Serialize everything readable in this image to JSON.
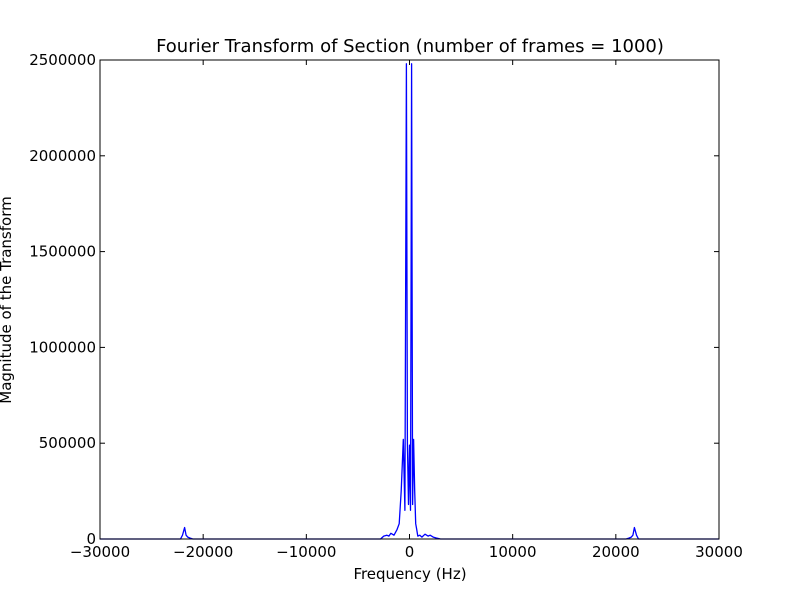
{
  "chart_data": {
    "type": "line",
    "title": "Fourier Transform of Section  (number of frames = 1000)",
    "xlabel": "Frequency (Hz)",
    "ylabel": "Magnitude of the Transform",
    "xlim": [
      -30000,
      30000
    ],
    "ylim": [
      0,
      2500000
    ],
    "xticks": [
      -30000,
      -20000,
      -10000,
      0,
      10000,
      20000,
      30000
    ],
    "xtick_labels": [
      "−30000",
      "−20000",
      "−10000",
      "0",
      "10000",
      "20000",
      "30000"
    ],
    "yticks": [
      0,
      500000,
      1000000,
      1500000,
      2000000,
      2500000
    ],
    "ytick_labels": [
      "0",
      "500000",
      "1000000",
      "1500000",
      "2000000",
      "2500000"
    ],
    "grid": false,
    "line_color": "#0000ff",
    "series": [
      {
        "x": [
          -30000,
          -22200,
          -22000,
          -21800,
          -21650,
          -21500,
          -21300,
          -21000,
          -2800,
          -2500,
          -2200,
          -2000,
          -1800,
          -1500,
          -1200,
          -1000,
          -800,
          -600,
          -450,
          -300,
          -200,
          -100,
          0,
          100,
          200,
          300,
          400,
          500,
          600,
          700,
          800,
          1000,
          1200,
          1500,
          1800,
          2000,
          2300,
          2600,
          3000,
          21000,
          21300,
          21500,
          21650,
          21800,
          22000,
          22200,
          30000
        ],
        "y": [
          0,
          0,
          20000,
          60000,
          20000,
          10000,
          5000,
          0,
          0,
          15000,
          20000,
          15000,
          30000,
          20000,
          50000,
          80000,
          250000,
          520000,
          150000,
          2480000,
          500000,
          180000,
          490000,
          150000,
          2480000,
          180000,
          520000,
          250000,
          80000,
          50000,
          15000,
          20000,
          10000,
          25000,
          15000,
          20000,
          10000,
          5000,
          0,
          0,
          5000,
          10000,
          20000,
          60000,
          20000,
          0,
          0
        ]
      }
    ]
  }
}
